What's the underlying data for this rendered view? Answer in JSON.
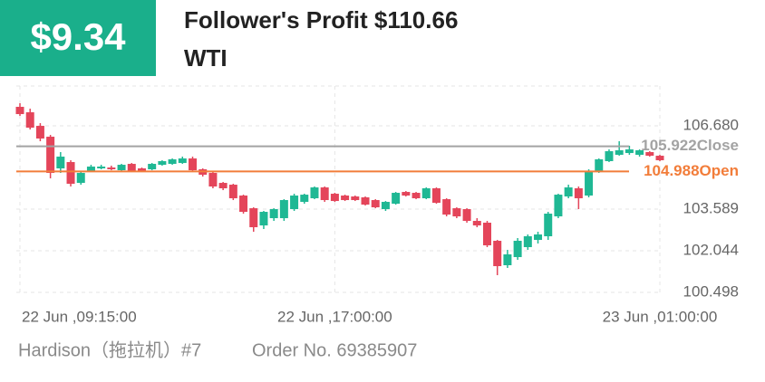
{
  "header": {
    "profit": "$9.34",
    "title": "Follower's Profit $110.66",
    "symbol": "WTI"
  },
  "chart_data": {
    "type": "candlestick",
    "categories": [
      "22 Jun ,09:15:00",
      null,
      null,
      null,
      null,
      null,
      null,
      null,
      null,
      null,
      null,
      null,
      null,
      null,
      null,
      null,
      null,
      null,
      null,
      null,
      null,
      null,
      null,
      null,
      null,
      null,
      null,
      null,
      null,
      null,
      null,
      "22 Jun ,17:00:00",
      null,
      null,
      null,
      null,
      null,
      null,
      null,
      null,
      null,
      null,
      null,
      null,
      null,
      null,
      null,
      null,
      null,
      null,
      null,
      null,
      null,
      null,
      null,
      null,
      null,
      null,
      null,
      null,
      null,
      null,
      null,
      "23 Jun ,01:00:00"
    ],
    "open": [
      107.386,
      107.184,
      106.68,
      106.277,
      105.101,
      105.336,
      104.563,
      105.0,
      105.101,
      105.134,
      105.034,
      105.269,
      105.101,
      105.067,
      105.235,
      105.269,
      105.302,
      105.47,
      105.067,
      104.933,
      104.563,
      104.496,
      104.093,
      103.622,
      102.984,
      103.253,
      103.253,
      103.589,
      103.858,
      103.992,
      104.395,
      104.16,
      104.093,
      104.059,
      104.026,
      103.925,
      103.589,
      103.79,
      104.227,
      104.194,
      103.992,
      104.362,
      103.958,
      103.622,
      103.589,
      103.152,
      103.085,
      102.413,
      101.506,
      101.808,
      102.178,
      102.446,
      102.581,
      103.32,
      104.059,
      104.362,
      104.093,
      105.0,
      105.37,
      105.605,
      105.672,
      105.605,
      105.706,
      105.571
    ],
    "high": [
      107.52,
      107.318,
      106.781,
      106.344,
      105.706,
      105.403,
      105.0,
      105.235,
      105.235,
      105.202,
      105.269,
      105.302,
      105.134,
      105.302,
      105.403,
      105.47,
      105.538,
      105.538,
      105.101,
      104.966,
      104.597,
      104.53,
      104.126,
      103.656,
      103.522,
      103.622,
      103.958,
      104.16,
      104.16,
      104.429,
      104.429,
      104.194,
      104.126,
      104.093,
      104.059,
      103.958,
      103.891,
      104.227,
      104.261,
      104.227,
      104.395,
      104.395,
      103.992,
      103.656,
      103.622,
      103.253,
      103.152,
      102.446,
      102.077,
      102.514,
      102.648,
      102.749,
      103.488,
      104.16,
      104.496,
      104.429,
      105.067,
      105.47,
      105.806,
      106.109,
      105.941,
      105.806,
      105.739,
      105.605
    ],
    "low": [
      107.05,
      106.546,
      106.109,
      104.731,
      104.933,
      104.429,
      104.496,
      104.966,
      105.067,
      105.034,
      105.0,
      104.966,
      104.966,
      105.034,
      105.202,
      105.235,
      105.269,
      104.966,
      104.798,
      104.362,
      104.294,
      103.925,
      103.421,
      102.749,
      102.85,
      103.152,
      103.152,
      103.522,
      103.79,
      103.958,
      103.858,
      103.858,
      103.891,
      103.891,
      103.723,
      103.622,
      103.522,
      103.757,
      104.059,
      103.958,
      103.958,
      103.79,
      103.32,
      103.253,
      103.085,
      102.917,
      102.178,
      101.136,
      101.405,
      101.707,
      102.077,
      102.312,
      102.446,
      103.253,
      103.992,
      103.589,
      104.026,
      104.933,
      105.336,
      105.571,
      105.605,
      105.538,
      105.538,
      105.37
    ],
    "close": [
      107.117,
      106.613,
      106.21,
      104.933,
      105.538,
      104.53,
      104.933,
      105.168,
      105.168,
      105.067,
      105.235,
      105.0,
      105.0,
      105.269,
      105.37,
      105.437,
      105.47,
      105.034,
      104.866,
      104.429,
      104.362,
      103.992,
      103.488,
      102.917,
      103.488,
      103.589,
      103.925,
      104.093,
      104.126,
      104.395,
      103.925,
      103.891,
      103.925,
      103.925,
      103.757,
      103.656,
      103.858,
      104.194,
      104.093,
      103.992,
      104.362,
      103.824,
      103.387,
      103.32,
      103.152,
      102.984,
      102.245,
      101.472,
      101.909,
      102.413,
      102.581,
      102.648,
      103.421,
      104.126,
      104.395,
      103.992,
      105.0,
      105.437,
      105.739,
      105.773,
      105.806,
      105.773,
      105.571,
      105.403
    ],
    "up_color": "#1fb894",
    "down_color": "#e4455a",
    "ylim": [
      100.498,
      108.16
    ],
    "yticks": [
      100.498,
      102.044,
      103.589,
      {
        "value": 106.68,
        "label": "106.680"
      }
    ],
    "grid": true,
    "reference_lines": [
      {
        "value": 105.922,
        "label": "105.922Close",
        "color": "#a3a3a3"
      },
      {
        "value": 104.988,
        "label": "104.988Open",
        "color": "#f27d3a"
      }
    ]
  },
  "footer": {
    "trader": "Hardison（拖拉机）#7",
    "order": "Order No. 69385907"
  }
}
